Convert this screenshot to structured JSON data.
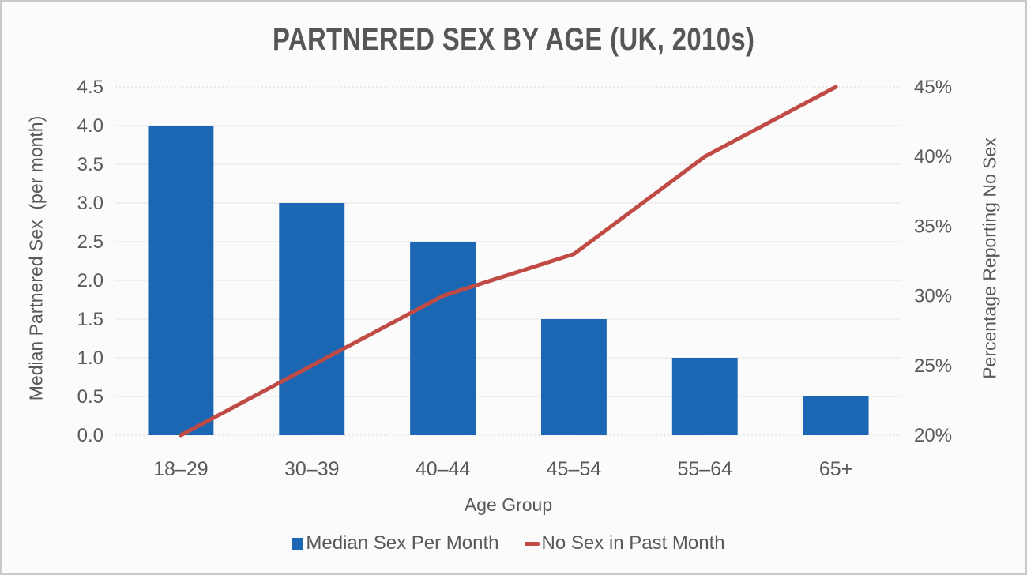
{
  "title": "PARTNERED SEX BY AGE (UK, 2010s)",
  "chart_data": {
    "type": "bar",
    "subtype": "combo-bar-line-dual-axis",
    "categories": [
      "18–29",
      "30–39",
      "40–44",
      "45–54",
      "55–64",
      "65+"
    ],
    "series": [
      {
        "name": "Median Sex Per Month",
        "type": "bar",
        "axis": "left",
        "values": [
          4.0,
          3.0,
          2.5,
          1.5,
          1.0,
          0.5
        ],
        "color": "#1b67b3"
      },
      {
        "name": "No Sex in Past Month",
        "type": "line",
        "axis": "right",
        "values": [
          20,
          25,
          30,
          33,
          40,
          45
        ],
        "color": "#c04a44"
      }
    ],
    "left_axis": {
      "label": "Median Partnered Sex  (per month)",
      "min": 0,
      "max": 4.5,
      "step": 0.5
    },
    "right_axis": {
      "label": "Percentage Reporting No Sex",
      "min": 20,
      "max": 45,
      "step": 5,
      "suffix": "%"
    },
    "xlabel": "Age Group",
    "legend_position": "bottom",
    "grid": true
  },
  "colors": {
    "background": "#fbfbfb",
    "frame_border": "#c9c9c9",
    "grid": "#e4e4e4",
    "grid_edge": "#d8d8d8",
    "text": "#595959"
  }
}
